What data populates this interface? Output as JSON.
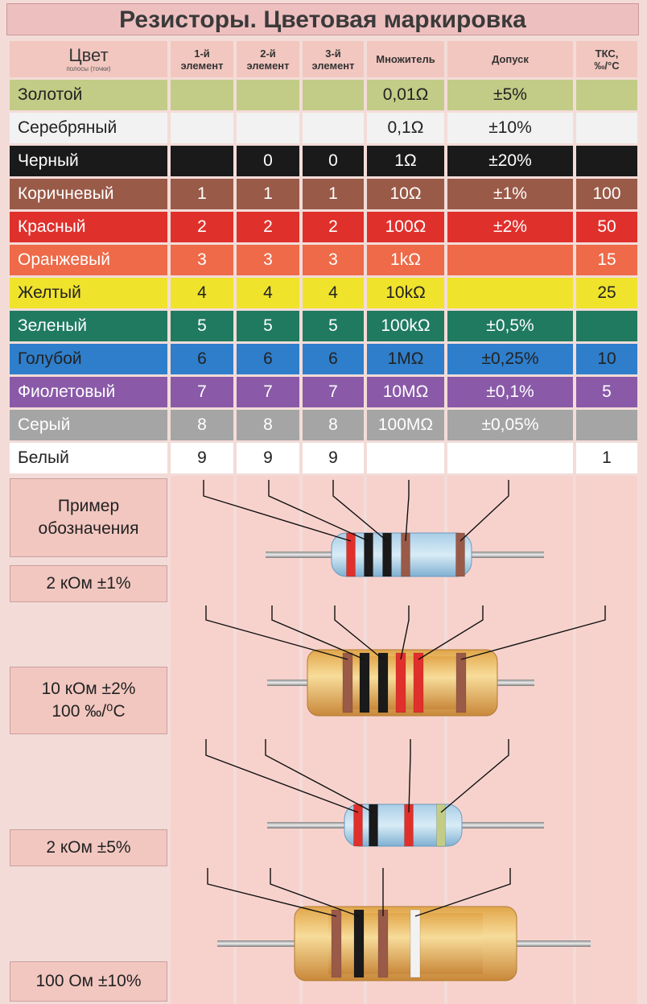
{
  "title": "Резисторы. Цветовая маркировка",
  "header": {
    "color": "Цвет",
    "color_sub": "полосы (точки)",
    "first": [
      "1-й",
      "элемент"
    ],
    "second": [
      "2-й",
      "элемент"
    ],
    "third": [
      "3-й",
      "элемент"
    ],
    "multiplier": "Множитель",
    "tolerance": "Допуск",
    "tks": [
      "ТКС,",
      "‰/°С"
    ]
  },
  "rows": [
    {
      "name": "Золотой",
      "bg": "#c2cc86",
      "fg": "#222",
      "d1": "",
      "d2": "",
      "d3": "",
      "mult": "0,01Ω",
      "tol": "±5%",
      "tks": ""
    },
    {
      "name": "Серебряный",
      "bg": "#f2f2f2",
      "fg": "#222",
      "d1": "",
      "d2": "",
      "d3": "",
      "mult": "0,1Ω",
      "tol": "±10%",
      "tks": ""
    },
    {
      "name": "Черный",
      "bg": "#1a1a1a",
      "fg": "#ffffff",
      "d1": "",
      "d2": "0",
      "d3": "0",
      "mult": "1Ω",
      "tol": "±20%",
      "tks": ""
    },
    {
      "name": "Коричневый",
      "bg": "#9a5a48",
      "fg": "#ffffff",
      "d1": "1",
      "d2": "1",
      "d3": "1",
      "mult": "10Ω",
      "tol": "±1%",
      "tks": "100"
    },
    {
      "name": "Красный",
      "bg": "#e0302c",
      "fg": "#ffffff",
      "d1": "2",
      "d2": "2",
      "d3": "2",
      "mult": "100Ω",
      "tol": "±2%",
      "tks": "50"
    },
    {
      "name": "Оранжевый",
      "bg": "#ee6a48",
      "fg": "#ffffff",
      "d1": "3",
      "d2": "3",
      "d3": "3",
      "mult": "1kΩ",
      "tol": "",
      "tks": "15"
    },
    {
      "name": "Желтый",
      "bg": "#f0e32c",
      "fg": "#222",
      "d1": "4",
      "d2": "4",
      "d3": "4",
      "mult": "10kΩ",
      "tol": "",
      "tks": "25"
    },
    {
      "name": "Зеленый",
      "bg": "#1f7a60",
      "fg": "#ffffff",
      "d1": "5",
      "d2": "5",
      "d3": "5",
      "mult": "100kΩ",
      "tol": "±0,5%",
      "tks": ""
    },
    {
      "name": "Голубой",
      "bg": "#2e7ecb",
      "fg": "#222",
      "d1": "6",
      "d2": "6",
      "d3": "6",
      "mult": "1MΩ",
      "tol": "±0,25%",
      "tks": "10"
    },
    {
      "name": "Фиолетовый",
      "bg": "#8a5aa8",
      "fg": "#ffffff",
      "d1": "7",
      "d2": "7",
      "d3": "7",
      "mult": "10MΩ",
      "tol": "±0,1%",
      "tks": "5"
    },
    {
      "name": "Серый",
      "bg": "#a5a5a5",
      "fg": "#ffffff",
      "d1": "8",
      "d2": "8",
      "d3": "8",
      "mult": "100MΩ",
      "tol": "±0,05%",
      "tks": ""
    },
    {
      "name": "Белый",
      "bg": "#ffffff",
      "fg": "#222",
      "d1": "9",
      "d2": "9",
      "d3": "9",
      "mult": "",
      "tol": "",
      "tks": "1"
    }
  ],
  "examples": [
    {
      "label_lines": [
        "Пример",
        "обозначения"
      ]
    },
    {
      "label_lines": [
        "2 кОм ±1%"
      ]
    },
    {
      "label_lines": [
        "10 кОм ±2%",
        "100 ‰/⁰С"
      ]
    },
    {
      "label_lines": [
        "2 кОм ±5%"
      ]
    },
    {
      "label_lines": [
        "100 Ом ±10%"
      ]
    }
  ],
  "resistors": [
    {
      "style": "blue-small",
      "bands": [
        "#e0302c",
        "#1a1a1a",
        "#1a1a1a",
        "#9a5a48",
        "#9a5a48"
      ]
    },
    {
      "style": "tan-large",
      "bands": [
        "#9a5a48",
        "#1a1a1a",
        "#1a1a1a",
        "#e0302c",
        "#e0302c",
        "#9a5a48"
      ]
    },
    {
      "style": "blue-small",
      "bands": [
        "#e0302c",
        "#1a1a1a",
        "#e0302c",
        "#c2cc86"
      ]
    },
    {
      "style": "tan-large",
      "bands": [
        "#9a5a48",
        "#1a1a1a",
        "#9a5a48",
        "#f2f2f2"
      ]
    }
  ]
}
